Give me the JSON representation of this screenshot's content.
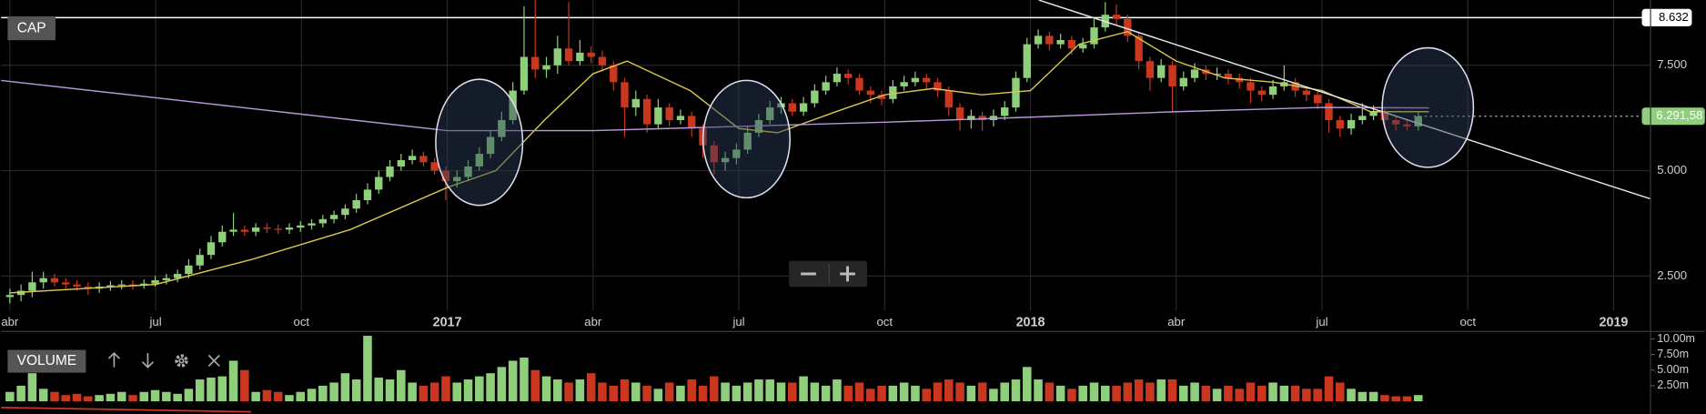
{
  "chart_data": [
    {
      "type": "candlestick",
      "title": "CAP",
      "x": [
        3.0,
        3.23,
        3.46,
        3.69,
        3.92,
        4.15,
        4.38,
        4.61,
        4.84,
        5.07,
        5.3,
        5.53,
        5.76,
        5.99,
        6.22,
        6.45,
        6.68,
        6.91,
        7.14,
        7.37,
        7.6,
        7.83,
        8.06,
        8.29,
        8.52,
        8.75,
        8.98,
        9.21,
        9.44,
        9.67,
        9.9,
        10.13,
        10.36,
        10.59,
        10.82,
        11.05,
        11.28,
        11.51,
        11.74,
        11.97,
        12.2,
        12.43,
        12.66,
        12.89,
        13.12,
        13.35,
        13.58,
        13.81,
        14.04,
        14.27,
        14.5,
        14.73,
        14.96,
        15.19,
        15.42,
        15.65,
        15.88,
        16.11,
        16.34,
        16.57,
        16.8,
        17.03,
        17.26,
        17.49,
        17.72,
        17.95,
        18.18,
        18.41,
        18.64,
        18.87,
        19.1,
        19.33,
        19.56,
        19.79,
        20.02,
        20.25,
        20.48,
        20.71,
        20.94,
        21.17,
        21.4,
        21.63,
        21.86,
        22.09,
        22.32,
        22.55,
        22.78,
        23.01,
        23.24,
        23.47,
        23.7,
        23.93,
        24.16,
        24.39,
        24.62,
        24.85,
        25.08,
        25.31,
        25.54,
        25.77,
        26.0,
        26.23,
        26.46,
        26.69,
        26.92,
        27.15,
        27.38,
        27.61,
        27.84,
        28.07,
        28.3,
        28.53,
        28.76,
        28.99,
        29.22,
        29.45,
        29.68,
        29.91,
        30.14,
        30.37,
        30.6,
        30.83,
        31.06,
        31.29,
        31.52,
        31.75,
        31.98
      ],
      "open": [
        2.0,
        2.05,
        2.15,
        2.35,
        2.45,
        2.35,
        2.3,
        2.25,
        2.2,
        2.25,
        2.28,
        2.3,
        2.28,
        2.32,
        2.4,
        2.45,
        2.55,
        2.75,
        3.0,
        3.3,
        3.55,
        3.6,
        3.55,
        3.65,
        3.62,
        3.6,
        3.65,
        3.7,
        3.75,
        3.85,
        3.95,
        4.1,
        4.3,
        4.55,
        4.85,
        5.1,
        5.25,
        5.35,
        5.2,
        5.0,
        4.75,
        4.85,
        5.1,
        5.4,
        5.8,
        6.2,
        6.9,
        7.7,
        7.4,
        7.5,
        7.9,
        7.6,
        7.8,
        7.7,
        7.5,
        7.1,
        6.5,
        6.7,
        6.1,
        6.5,
        6.2,
        6.3,
        6.0,
        5.6,
        5.2,
        5.3,
        5.5,
        5.9,
        6.2,
        6.5,
        6.6,
        6.4,
        6.6,
        6.9,
        7.1,
        7.3,
        7.2,
        6.9,
        6.8,
        6.7,
        7.0,
        7.1,
        7.2,
        7.1,
        6.9,
        6.5,
        6.2,
        6.3,
        6.2,
        6.3,
        6.5,
        7.2,
        8.0,
        8.2,
        8.0,
        8.1,
        7.9,
        8.0,
        8.4,
        8.7,
        8.6,
        8.2,
        7.6,
        7.2,
        7.5,
        7.0,
        7.2,
        7.4,
        7.3,
        7.3,
        7.2,
        7.1,
        6.9,
        6.8,
        7.0,
        7.1,
        6.9,
        6.8,
        6.6,
        6.2,
        6.0,
        6.2,
        6.3,
        6.4,
        6.2,
        6.1,
        6.05
      ],
      "high": [
        2.2,
        2.3,
        2.6,
        2.6,
        2.55,
        2.45,
        2.4,
        2.35,
        2.35,
        2.38,
        2.4,
        2.4,
        2.42,
        2.5,
        2.55,
        2.65,
        2.9,
        3.15,
        3.45,
        3.7,
        4.0,
        3.7,
        3.75,
        3.75,
        3.72,
        3.75,
        3.8,
        3.85,
        3.95,
        4.05,
        4.2,
        4.45,
        4.7,
        5.0,
        5.25,
        5.4,
        5.5,
        5.45,
        5.3,
        5.1,
        5.0,
        5.25,
        5.55,
        5.95,
        6.4,
        7.1,
        8.9,
        9.1,
        7.7,
        8.2,
        9.0,
        8.1,
        7.95,
        7.85,
        7.6,
        7.2,
        6.9,
        6.8,
        6.7,
        6.6,
        6.45,
        6.4,
        6.1,
        5.7,
        5.45,
        5.65,
        6.05,
        6.35,
        6.65,
        6.75,
        6.7,
        6.75,
        7.05,
        7.25,
        7.45,
        7.4,
        7.3,
        7.0,
        6.9,
        7.15,
        7.25,
        7.35,
        7.3,
        7.2,
        7.0,
        6.6,
        6.45,
        6.4,
        6.45,
        6.65,
        7.35,
        8.15,
        8.35,
        8.3,
        8.25,
        8.2,
        8.15,
        8.6,
        9.0,
        8.95,
        8.7,
        8.3,
        7.7,
        7.65,
        7.6,
        7.35,
        7.55,
        7.5,
        7.45,
        7.4,
        7.3,
        7.2,
        7.0,
        7.15,
        7.5,
        7.2,
        7.0,
        6.9,
        6.7,
        6.3,
        6.35,
        6.6,
        6.55,
        6.5,
        6.3,
        6.2,
        6.4
      ],
      "low": [
        1.85,
        1.9,
        2.0,
        2.2,
        2.25,
        2.2,
        2.15,
        2.05,
        2.1,
        2.15,
        2.18,
        2.18,
        2.2,
        2.25,
        2.3,
        2.35,
        2.45,
        2.65,
        2.9,
        3.2,
        3.45,
        3.45,
        3.45,
        3.52,
        3.5,
        3.5,
        3.55,
        3.6,
        3.65,
        3.75,
        3.85,
        4.0,
        4.2,
        4.45,
        4.75,
        5.0,
        5.15,
        5.1,
        4.9,
        4.3,
        4.6,
        4.75,
        5.0,
        5.3,
        5.7,
        6.1,
        6.8,
        7.2,
        7.2,
        7.3,
        7.5,
        7.5,
        7.55,
        7.35,
        6.9,
        5.8,
        6.3,
        5.9,
        6.0,
        6.05,
        6.1,
        5.8,
        5.3,
        4.9,
        5.0,
        5.15,
        5.4,
        5.8,
        6.1,
        6.35,
        6.3,
        6.3,
        6.5,
        6.8,
        7.0,
        7.05,
        6.8,
        6.6,
        6.55,
        6.6,
        6.9,
        7.0,
        6.95,
        6.75,
        6.3,
        5.95,
        6.0,
        5.95,
        6.05,
        6.2,
        6.4,
        7.1,
        7.9,
        7.85,
        7.9,
        7.75,
        7.8,
        7.9,
        8.3,
        8.45,
        8.05,
        7.4,
        6.9,
        7.1,
        6.4,
        6.9,
        7.1,
        7.15,
        7.15,
        7.05,
        6.95,
        6.6,
        6.65,
        6.7,
        6.9,
        6.75,
        6.65,
        6.45,
        5.9,
        5.8,
        5.85,
        6.1,
        6.2,
        6.05,
        5.95,
        5.95,
        5.95
      ],
      "close": [
        2.05,
        2.15,
        2.35,
        2.45,
        2.35,
        2.3,
        2.25,
        2.2,
        2.25,
        2.28,
        2.3,
        2.28,
        2.32,
        2.4,
        2.45,
        2.55,
        2.75,
        3.0,
        3.3,
        3.55,
        3.6,
        3.55,
        3.65,
        3.62,
        3.6,
        3.65,
        3.7,
        3.75,
        3.85,
        3.95,
        4.1,
        4.3,
        4.55,
        4.85,
        5.1,
        5.25,
        5.35,
        5.2,
        5.0,
        4.75,
        4.85,
        5.1,
        5.4,
        5.8,
        6.2,
        6.9,
        7.7,
        7.4,
        7.5,
        7.9,
        7.6,
        7.8,
        7.7,
        7.5,
        7.1,
        6.5,
        6.7,
        6.1,
        6.5,
        6.2,
        6.3,
        6.0,
        5.6,
        5.2,
        5.3,
        5.5,
        5.9,
        6.2,
        6.5,
        6.6,
        6.4,
        6.6,
        6.9,
        7.1,
        7.3,
        7.2,
        6.9,
        6.8,
        6.7,
        7.0,
        7.1,
        7.2,
        7.1,
        6.9,
        6.5,
        6.2,
        6.3,
        6.2,
        6.3,
        6.5,
        7.2,
        8.0,
        8.2,
        8.0,
        8.1,
        7.9,
        8.0,
        8.4,
        8.7,
        8.6,
        8.2,
        7.6,
        7.2,
        7.5,
        7.0,
        7.2,
        7.4,
        7.3,
        7.3,
        7.2,
        7.1,
        6.9,
        6.8,
        7.0,
        7.1,
        6.9,
        6.8,
        6.6,
        6.2,
        6.0,
        6.2,
        6.3,
        6.4,
        6.2,
        6.1,
        6.05,
        6.29
      ],
      "up_color": "#8fcf7c",
      "down_color": "#c9371f",
      "xlim": [
        2.82,
        36.76
      ],
      "xticks": [
        {
          "value": 3,
          "label": "abr"
        },
        {
          "value": 6,
          "label": "jul"
        },
        {
          "value": 9,
          "label": "oct"
        },
        {
          "value": 12,
          "label": "2017"
        },
        {
          "value": 15,
          "label": "abr"
        },
        {
          "value": 18,
          "label": "jul"
        },
        {
          "value": 21,
          "label": "oct"
        },
        {
          "value": 24,
          "label": "2018"
        },
        {
          "value": 27,
          "label": "abr"
        },
        {
          "value": 30,
          "label": "jul"
        },
        {
          "value": 33,
          "label": "oct"
        },
        {
          "value": 36,
          "label": "2019"
        }
      ],
      "ylim": [
        1.675,
        9.05
      ],
      "yticks": [
        {
          "value": 2.5,
          "label": "2.500"
        },
        {
          "value": 5,
          "label": "5.000"
        },
        {
          "value": 7.5,
          "label": "7.500"
        }
      ],
      "grid": true,
      "lines": [
        {
          "color": "#d8c64e",
          "x": [
            3,
            6,
            8,
            10,
            12,
            13,
            14,
            15,
            15.7,
            17,
            18,
            18.8,
            20,
            21,
            22,
            23,
            24,
            25,
            26,
            27,
            28,
            29,
            30,
            31,
            32.2
          ],
          "values": [
            2.1,
            2.3,
            2.9,
            3.6,
            4.6,
            5.0,
            6.2,
            7.3,
            7.6,
            6.9,
            6.0,
            5.9,
            6.4,
            6.8,
            6.95,
            6.8,
            6.9,
            8.0,
            8.3,
            7.6,
            7.2,
            7.1,
            6.9,
            6.4,
            6.4
          ]
        },
        {
          "color": "#b79ad8",
          "x": [
            2.82,
            6,
            9,
            12,
            15,
            18,
            21,
            24,
            27,
            30,
            32.2
          ],
          "values": [
            7.14,
            6.73,
            6.34,
            5.95,
            5.95,
            6.05,
            6.15,
            6.27,
            6.4,
            6.5,
            6.49
          ]
        },
        {
          "color": "#e6e6e6",
          "x": [
            24.17,
            36.76
          ],
          "values": [
            9.05,
            4.33
          ]
        }
      ],
      "hline": {
        "value": 8.632,
        "color": "#ffffff"
      },
      "last_price": {
        "value": 6.29158,
        "label": "6.291,58",
        "color": "#8fcf7c"
      }
    },
    {
      "type": "volume",
      "title": "VOLUME",
      "values": [
        1.5,
        2.5,
        4.5,
        2.0,
        1.5,
        1.0,
        1.2,
        0.8,
        1.0,
        1.2,
        1.5,
        1.0,
        1.5,
        1.8,
        1.5,
        1.2,
        2.0,
        3.5,
        3.8,
        4.0,
        6.5,
        5.0,
        1.5,
        1.8,
        1.5,
        1.0,
        1.5,
        2.0,
        2.5,
        3.0,
        4.5,
        3.5,
        10.5,
        3.8,
        3.5,
        5.0,
        3.0,
        2.5,
        3.0,
        4.0,
        3.0,
        3.5,
        4.0,
        4.5,
        5.5,
        6.5,
        7.0,
        5.0,
        4.0,
        3.5,
        3.0,
        3.5,
        4.5,
        3.0,
        2.5,
        3.5,
        3.0,
        2.5,
        2.0,
        3.0,
        2.5,
        3.5,
        2.5,
        4.0,
        3.0,
        2.5,
        3.0,
        3.5,
        3.5,
        3.0,
        3.0,
        4.0,
        3.0,
        2.5,
        3.5,
        2.5,
        3.0,
        2.0,
        2.5,
        2.5,
        3.0,
        2.5,
        2.0,
        3.0,
        3.5,
        3.0,
        2.5,
        3.0,
        2.0,
        3.0,
        3.5,
        5.5,
        3.5,
        3.0,
        2.5,
        2.0,
        2.5,
        3.0,
        2.5,
        2.5,
        3.0,
        3.5,
        3.0,
        3.5,
        3.5,
        2.5,
        3.0,
        2.5,
        2.0,
        2.5,
        2.0,
        3.0,
        2.5,
        3.0,
        2.5,
        2.5,
        2.0,
        2.0,
        4.0,
        3.0,
        2.0,
        1.5,
        1.5,
        1.0,
        0.8,
        0.8,
        1.0
      ],
      "ylim": [
        0,
        11.2
      ],
      "yticks": [
        {
          "value": 2.5,
          "label": "2.50m"
        },
        {
          "value": 5,
          "label": "5.00m"
        },
        {
          "value": 7.5,
          "label": "7.50m"
        },
        {
          "value": 10,
          "label": "10.00m"
        }
      ]
    }
  ]
}
